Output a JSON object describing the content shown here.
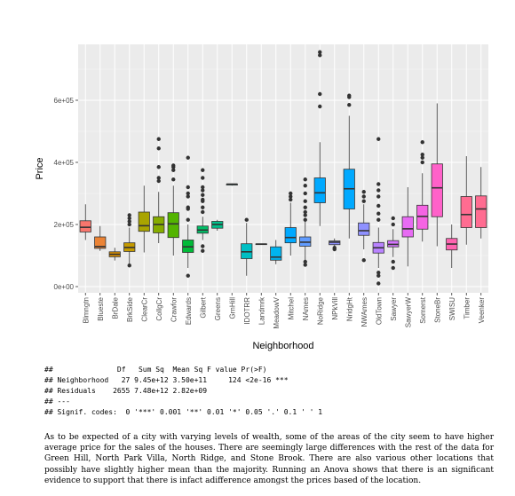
{
  "chart_data": {
    "type": "box",
    "xlabel": "Neighborhood",
    "ylabel": "Price",
    "ylim": [
      -20000,
      780000
    ],
    "yticks": [
      0,
      200000,
      400000,
      600000
    ],
    "ytick_labels": [
      "0e+00",
      "2e+05",
      "4e+05",
      "6e+05"
    ],
    "grid": true,
    "categories": [
      "Blmngtn",
      "Blueste",
      "BrDale",
      "BrkSide",
      "ClearCr",
      "CollgCr",
      "Crawfor",
      "Edwards",
      "Gilbert",
      "Greens",
      "GrnHill",
      "IDOTRR",
      "Landmrk",
      "MeadowV",
      "Mitchel",
      "NAmes",
      "NoRidge",
      "NPkVill",
      "NridgHt",
      "NWAmes",
      "OldTown",
      "Sawyer",
      "SawyerW",
      "Somerst",
      "StoneBr",
      "SWISU",
      "Timber",
      "Veenker"
    ],
    "colors": [
      "#F8766D",
      "#EB8335",
      "#DA8E00",
      "#C49A00",
      "#A9A400",
      "#86AC00",
      "#53B400",
      "#00BA38",
      "#00BE67",
      "#00C08B",
      "#00C1A9",
      "#00BFC4",
      "#00BBDC",
      "#00B4EF",
      "#00A9FF",
      "#619CFF",
      "#00A9FF",
      "#8F91FF",
      "#00A9FF",
      "#8F91FF",
      "#B983FF",
      "#D575FE",
      "#E76BF3",
      "#F564E3",
      "#FF61C9",
      "#FF64B0",
      "#FF6C91",
      "#FF6C91"
    ],
    "boxes": [
      {
        "min": 150000,
        "q1": 176000,
        "median": 191000,
        "q3": 212000,
        "max": 265000,
        "outliers": []
      },
      {
        "min": 115000,
        "q1": 123000,
        "median": 129000,
        "q3": 160000,
        "max": 195000,
        "outliers": []
      },
      {
        "min": 84000,
        "q1": 96000,
        "median": 104000,
        "q3": 112000,
        "max": 125000,
        "outliers": []
      },
      {
        "min": 62000,
        "q1": 113000,
        "median": 126000,
        "q3": 141000,
        "max": 190000,
        "outliers": [
          68000,
          200000,
          210000,
          220000,
          230000
        ]
      },
      {
        "min": 110000,
        "q1": 178000,
        "median": 196000,
        "q3": 240000,
        "max": 325000,
        "outliers": []
      },
      {
        "min": 140000,
        "q1": 173000,
        "median": 200000,
        "q3": 225000,
        "max": 305000,
        "outliers": [
          340000,
          350000,
          385000,
          445000,
          475000
        ]
      },
      {
        "min": 100000,
        "q1": 158000,
        "median": 202000,
        "q3": 238000,
        "max": 325000,
        "outliers": [
          345000,
          375000,
          385000,
          390000
        ]
      },
      {
        "min": 60000,
        "q1": 110000,
        "median": 128000,
        "q3": 150000,
        "max": 200000,
        "outliers": [
          35000,
          215000,
          250000,
          255000,
          290000,
          300000,
          320000,
          415000
        ]
      },
      {
        "min": 150000,
        "q1": 172000,
        "median": 182000,
        "q3": 195000,
        "max": 225000,
        "outliers": [
          115000,
          130000,
          240000,
          255000,
          275000,
          280000,
          295000,
          310000,
          320000,
          350000,
          375000
        ]
      },
      {
        "min": 180000,
        "q1": 188000,
        "median": 200000,
        "q3": 210000,
        "max": 215000,
        "outliers": []
      },
      {
        "min": 325000,
        "q1": 327000,
        "median": 330000,
        "q3": 330000,
        "max": 332000,
        "outliers": []
      },
      {
        "min": 35000,
        "q1": 90000,
        "median": 112000,
        "q3": 138000,
        "max": 205000,
        "outliers": [
          215000
        ]
      },
      {
        "min": 136000,
        "q1": 136500,
        "median": 137000,
        "q3": 137500,
        "max": 138000,
        "outliers": []
      },
      {
        "min": 72000,
        "q1": 85000,
        "median": 95000,
        "q3": 128000,
        "max": 150000,
        "outliers": []
      },
      {
        "min": 100000,
        "q1": 141000,
        "median": 158000,
        "q3": 190000,
        "max": 270000,
        "outliers": [
          280000,
          290000,
          300000
        ]
      },
      {
        "min": 85000,
        "q1": 130000,
        "median": 143000,
        "q3": 160000,
        "max": 210000,
        "outliers": [
          70000,
          80000,
          215000,
          230000,
          240000,
          255000,
          275000,
          300000,
          325000,
          345000
        ]
      },
      {
        "min": 195000,
        "q1": 270000,
        "median": 302000,
        "q3": 350000,
        "max": 465000,
        "outliers": [
          580000,
          620000,
          745000,
          755000
        ]
      },
      {
        "min": 125000,
        "q1": 135000,
        "median": 143000,
        "q3": 147000,
        "max": 155000,
        "outliers": [
          120000,
          125000
        ]
      },
      {
        "min": 155000,
        "q1": 250000,
        "median": 315000,
        "q3": 378000,
        "max": 550000,
        "outliers": [
          585000,
          610000,
          615000
        ]
      },
      {
        "min": 120000,
        "q1": 165000,
        "median": 180000,
        "q3": 205000,
        "max": 265000,
        "outliers": [
          85000,
          275000,
          290000,
          305000
        ]
      },
      {
        "min": 60000,
        "q1": 108000,
        "median": 125000,
        "q3": 142000,
        "max": 190000,
        "outliers": [
          10000,
          35000,
          45000,
          215000,
          235000,
          260000,
          290000,
          310000,
          330000,
          475000
        ]
      },
      {
        "min": 95000,
        "q1": 128000,
        "median": 136000,
        "q3": 148000,
        "max": 185000,
        "outliers": [
          60000,
          80000,
          200000,
          220000
        ]
      },
      {
        "min": 65000,
        "q1": 160000,
        "median": 186000,
        "q3": 225000,
        "max": 320000,
        "outliers": []
      },
      {
        "min": 145000,
        "q1": 185000,
        "median": 226000,
        "q3": 262000,
        "max": 365000,
        "outliers": [
          400000,
          415000,
          425000,
          465000
        ]
      },
      {
        "min": 130000,
        "q1": 225000,
        "median": 318000,
        "q3": 395000,
        "max": 590000,
        "outliers": []
      },
      {
        "min": 60000,
        "q1": 118000,
        "median": 137000,
        "q3": 155000,
        "max": 200000,
        "outliers": []
      },
      {
        "min": 135000,
        "q1": 190000,
        "median": 232000,
        "q3": 290000,
        "max": 420000,
        "outliers": []
      },
      {
        "min": 155000,
        "q1": 190000,
        "median": 250000,
        "q3": 292000,
        "max": 385000,
        "outliers": []
      }
    ]
  },
  "anova_lines": [
    "##               Df   Sum Sq  Mean Sq F value Pr(>F)",
    "## Neighborhood   27 9.45e+12 3.50e+11     124 <2e-16 ***",
    "## Residuals    2655 7.48e+12 2.82e+09",
    "## ---",
    "## Signif. codes:  0 '***' 0.001 '**' 0.01 '*' 0.05 '.' 0.1 ' ' 1"
  ],
  "paragraph": "As to be expected of a city with varying levels of wealth, some of the areas of the city seem to have higher average price for the sales of the houses. There are seemingly large differences with the rest of the data for Green Hill, North Park Villa, North Ridge, and Stone Brook. There are also various other locations that possibly have slightly higher mean than the majority. Running an Anova shows that there is an significant evidence to support that there is infact adifference amongst the prices based of the location."
}
